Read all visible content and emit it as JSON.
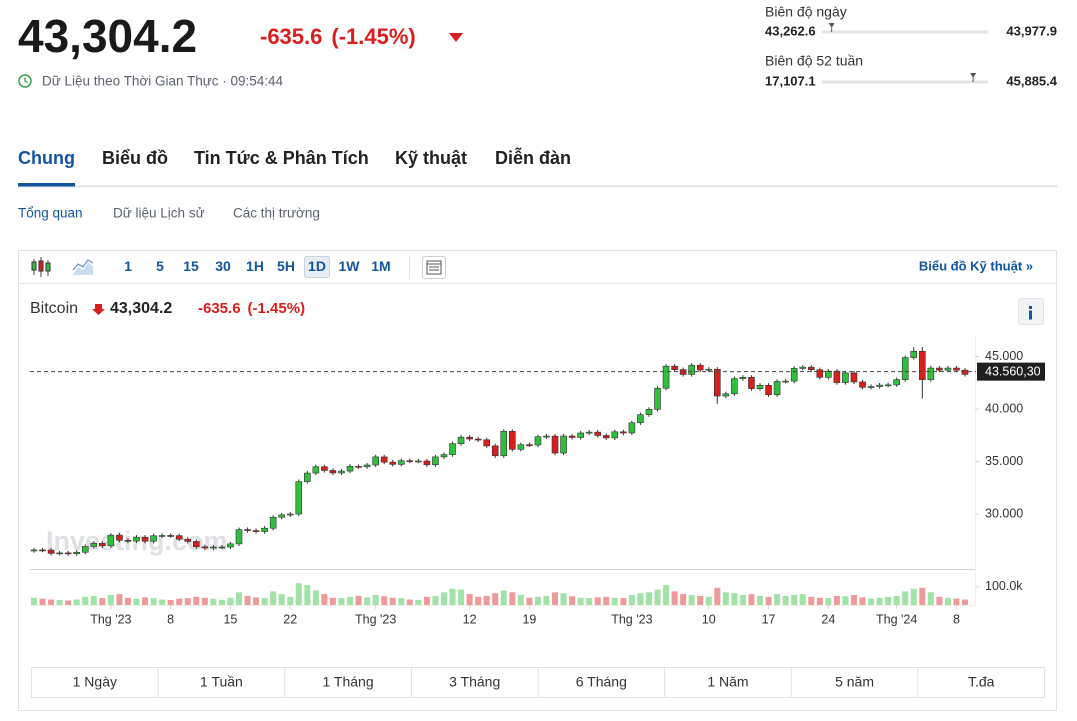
{
  "header": {
    "price": {
      "value": 43304.2,
      "label": "43,304.2"
    },
    "change": "-635.6",
    "change_pct": "(-1.45%)",
    "realtime": "Dữ Liệu theo Thời Gian Thực · 09:54:44"
  },
  "ranges": [
    {
      "label": "Biên độ ngày",
      "low": {
        "value": 43262.6,
        "label": "43,262.6"
      },
      "high": {
        "value": 43977.9,
        "label": "43,977.9"
      }
    },
    {
      "label": "Biên độ 52 tuần",
      "low": {
        "value": 17107.1,
        "label": "17,107.1"
      },
      "high": {
        "value": 45885.4,
        "label": "45,885.4"
      }
    }
  ],
  "tabs": [
    "Chung",
    "Biểu đồ",
    "Tin Tức & Phân Tích",
    "Kỹ thuật",
    "Diễn đàn"
  ],
  "subtabs": [
    "Tổng quan",
    "Dữ liệu Lịch sử",
    "Các thị trường"
  ],
  "intervals": [
    "1",
    "5",
    "15",
    "30",
    "1H",
    "5H",
    "1D",
    "1W",
    "1M"
  ],
  "technical_link": "Biểu đồ Kỹ thuật »",
  "chart_data": {
    "type": "candlestick",
    "name": "Bitcoin",
    "watermark": "Investing.com",
    "up_color": "#2fbf3c",
    "down_color": "#d91e1e",
    "open": [
      26530,
      26580,
      26570,
      26250,
      26300,
      26220,
      26360,
      26910,
      27210,
      26970,
      27990,
      27500,
      27430,
      27790,
      27410,
      27930,
      27960,
      27940,
      27600,
      27390,
      26880,
      26760,
      26860,
      26860,
      27160,
      28520,
      28420,
      28330,
      28650,
      29690,
      29920,
      30000,
      33090,
      33900,
      34500,
      34150,
      33910,
      34090,
      34540,
      34500,
      34670,
      35440,
      34940,
      34730,
      35080,
      35050,
      35050,
      34690,
      35440,
      35660,
      36700,
      37320,
      37140,
      37070,
      36490,
      35550,
      37880,
      36160,
      36600,
      36570,
      37360,
      37420,
      35810,
      37430,
      37290,
      37720,
      37800,
      37480,
      37250,
      37830,
      37720,
      38690,
      39460,
      39970,
      41980,
      44080,
      43750,
      43290,
      44170,
      43720,
      43790,
      41240,
      41450,
      42890,
      43020,
      41940,
      42260,
      41360,
      42630,
      42660,
      43870,
      43990,
      43740,
      43020,
      43610,
      42520,
      43440,
      42580,
      42070,
      42140,
      42280,
      42300,
      42800,
      44900,
      45500,
      42800,
      43900,
      43700,
      43900,
      43700
    ],
    "high": [
      26780,
      26780,
      26770,
      26500,
      26500,
      26560,
      27110,
      27410,
      27410,
      28190,
      28190,
      27700,
      27990,
      27990,
      28130,
      28160,
      28160,
      28140,
      27800,
      27590,
      27080,
      27060,
      27060,
      27360,
      28720,
      28720,
      28620,
      28850,
      29890,
      30120,
      30200,
      33290,
      34100,
      34700,
      34700,
      34350,
      34290,
      34740,
      34740,
      34870,
      35640,
      35640,
      35140,
      35280,
      35280,
      35250,
      35250,
      35640,
      35860,
      36900,
      37520,
      37520,
      37340,
      37270,
      36690,
      38080,
      38080,
      36800,
      36800,
      37560,
      37620,
      37620,
      37630,
      37630,
      37920,
      38000,
      38000,
      37680,
      38030,
      38030,
      38890,
      39660,
      40170,
      42180,
      44280,
      44280,
      43950,
      44370,
      44370,
      43990,
      43990,
      41650,
      43090,
      43220,
      43220,
      42460,
      42460,
      42830,
      42860,
      44070,
      44190,
      44190,
      43940,
      43810,
      43810,
      43640,
      43640,
      42780,
      42340,
      42480,
      42500,
      43000,
      45100,
      45900,
      45900,
      44100,
      44100,
      44100,
      44100,
      43900
    ],
    "low": [
      26330,
      26380,
      26050,
      26050,
      26020,
      26020,
      26160,
      26710,
      26770,
      26770,
      27300,
      27230,
      27230,
      27210,
      27210,
      27730,
      27740,
      27400,
      27190,
      26680,
      26560,
      26560,
      26660,
      26660,
      26960,
      28220,
      28130,
      28130,
      28450,
      29490,
      29720,
      29800,
      32890,
      33700,
      33950,
      33710,
      33710,
      33890,
      34300,
      34300,
      34470,
      34740,
      34530,
      34530,
      34850,
      34850,
      34490,
      34490,
      35240,
      35460,
      36500,
      36940,
      36870,
      36290,
      35350,
      35350,
      35960,
      35960,
      36370,
      36370,
      37160,
      35610,
      35610,
      37090,
      37090,
      37520,
      37280,
      37050,
      37050,
      37520,
      37520,
      38490,
      39260,
      39770,
      41780,
      43550,
      43090,
      43090,
      43520,
      43520,
      40500,
      41040,
      41250,
      42690,
      41740,
      41740,
      41160,
      41160,
      42430,
      42460,
      43670,
      43540,
      42820,
      42820,
      42320,
      42320,
      42380,
      41870,
      41870,
      41940,
      42080,
      42100,
      42600,
      44700,
      41000,
      42600,
      43500,
      43500,
      43500,
      43100
    ],
    "close": [
      26580,
      26570,
      26250,
      26300,
      26220,
      26360,
      26910,
      27210,
      26970,
      27990,
      27500,
      27430,
      27790,
      27410,
      27930,
      27960,
      27940,
      27600,
      27390,
      26880,
      26760,
      26860,
      26860,
      27160,
      28520,
      28420,
      28330,
      28650,
      29690,
      29920,
      30000,
      33090,
      33900,
      34500,
      34150,
      33910,
      34090,
      34540,
      34500,
      34670,
      35440,
      34940,
      34730,
      35080,
      35050,
      35050,
      34690,
      35440,
      35660,
      36700,
      37320,
      37140,
      37070,
      36490,
      35550,
      37880,
      36160,
      36600,
      36570,
      37360,
      37420,
      35810,
      37430,
      37290,
      37720,
      37800,
      37480,
      37250,
      37830,
      37720,
      38690,
      39460,
      39970,
      41980,
      44080,
      43750,
      43290,
      44170,
      43720,
      43790,
      41240,
      41450,
      42890,
      43020,
      41940,
      42260,
      41360,
      42630,
      42660,
      43870,
      43990,
      43740,
      43020,
      43610,
      42520,
      43440,
      42580,
      42070,
      42140,
      42280,
      42300,
      42800,
      44900,
      45500,
      42800,
      43900,
      43700,
      43900,
      43700,
      43304
    ],
    "ylim": [
      24860,
      47050
    ],
    "yticks": [
      {
        "value": 30000,
        "label": "30.000"
      },
      {
        "value": 35000,
        "label": "35.000"
      },
      {
        "value": 40000,
        "label": "40.000"
      },
      {
        "value": 45000,
        "label": "45.000"
      }
    ],
    "price_line": {
      "value": 43560.3,
      "label": "43.560,30"
    },
    "xticks": [
      {
        "value": 9,
        "label": "Thg '23"
      },
      {
        "value": 16,
        "label": "8"
      },
      {
        "value": 23,
        "label": "15"
      },
      {
        "value": 30,
        "label": "22"
      },
      {
        "value": 40,
        "label": "Thg '23"
      },
      {
        "value": 51,
        "label": "12"
      },
      {
        "value": 58,
        "label": "19"
      },
      {
        "value": 70,
        "label": "Thg '23"
      },
      {
        "value": 79,
        "label": "10"
      },
      {
        "value": 86,
        "label": "17"
      },
      {
        "value": 93,
        "label": "24"
      },
      {
        "value": 101,
        "label": "Thg '24"
      },
      {
        "value": 108,
        "label": "8"
      }
    ],
    "volume": {
      "values": [
        40000,
        35000,
        30000,
        28000,
        25000,
        30000,
        45000,
        50000,
        38000,
        55000,
        60000,
        40000,
        35000,
        42000,
        38000,
        30000,
        28000,
        35000,
        38000,
        45000,
        40000,
        35000,
        28000,
        40000,
        70000,
        50000,
        42000,
        38000,
        75000,
        60000,
        45000,
        120000,
        110000,
        80000,
        60000,
        40000,
        38000,
        45000,
        50000,
        42000,
        55000,
        48000,
        40000,
        38000,
        30000,
        28000,
        45000,
        50000,
        70000,
        90000,
        85000,
        60000,
        45000,
        50000,
        65000,
        80000,
        70000,
        55000,
        40000,
        45000,
        50000,
        70000,
        65000,
        48000,
        40000,
        38000,
        42000,
        45000,
        40000,
        38000,
        55000,
        65000,
        70000,
        85000,
        110000,
        75000,
        60000,
        55000,
        50000,
        45000,
        95000,
        70000,
        65000,
        55000,
        60000,
        50000,
        45000,
        60000,
        50000,
        55000,
        60000,
        45000,
        40000,
        38000,
        50000,
        48000,
        55000,
        42000,
        35000,
        40000,
        45000,
        50000,
        75000,
        90000,
        95000,
        70000,
        45000,
        40000,
        35000,
        30000
      ],
      "ylim": [
        0,
        160000
      ],
      "yticks": [
        {
          "value": 100000,
          "label": "100.0k"
        }
      ]
    }
  },
  "periods": [
    "1 Ngày",
    "1 Tuần",
    "1 Tháng",
    "3 Tháng",
    "6 Tháng",
    "1 Năm",
    "5 năm",
    "T.đa"
  ]
}
